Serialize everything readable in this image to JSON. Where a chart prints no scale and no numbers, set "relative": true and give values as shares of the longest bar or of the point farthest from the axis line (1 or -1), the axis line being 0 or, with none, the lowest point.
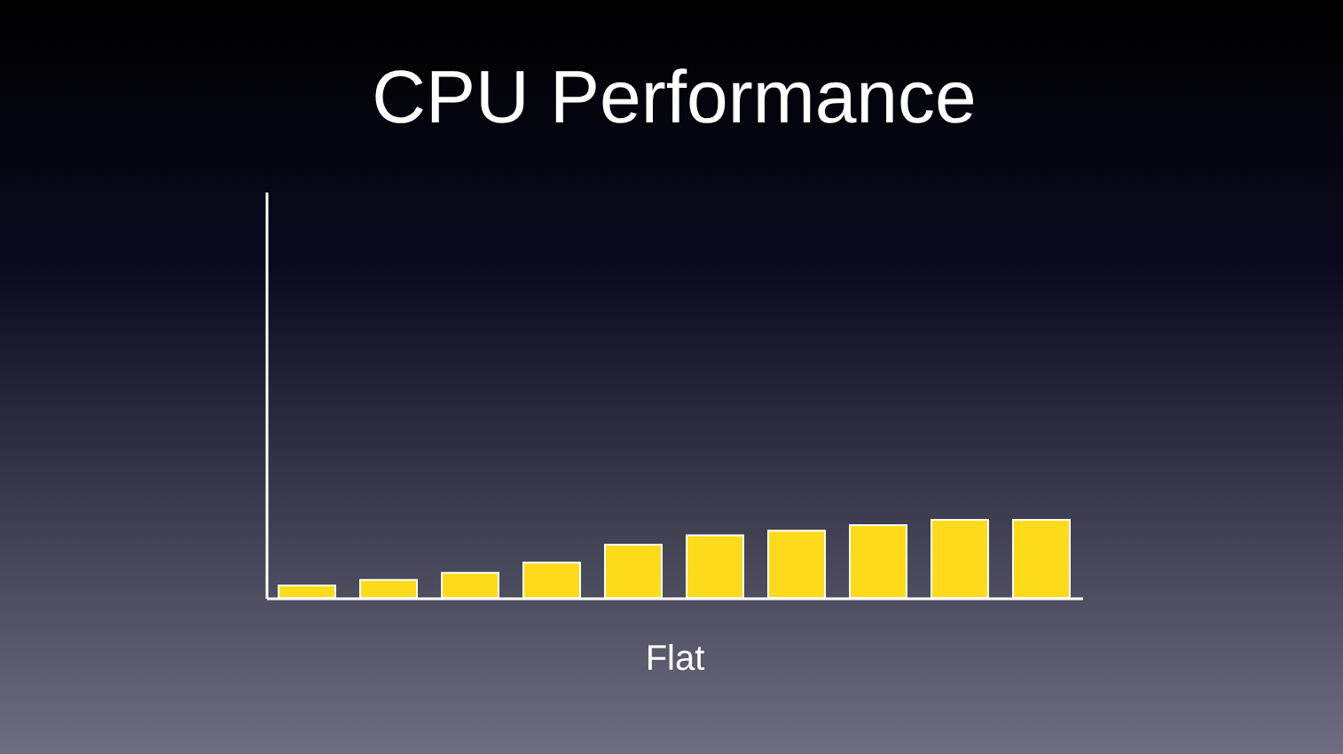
{
  "chart_data": {
    "type": "bar",
    "title": "CPU Performance",
    "xlabel": "Flat",
    "relative": true,
    "categories": [
      null,
      null,
      null,
      null,
      null,
      null,
      null,
      null,
      null,
      null
    ],
    "values": [
      0.16,
      0.23,
      0.32,
      0.45,
      0.68,
      0.8,
      0.86,
      0.93,
      1,
      1
    ],
    "color": "#fddb1a",
    "grid": false
  }
}
